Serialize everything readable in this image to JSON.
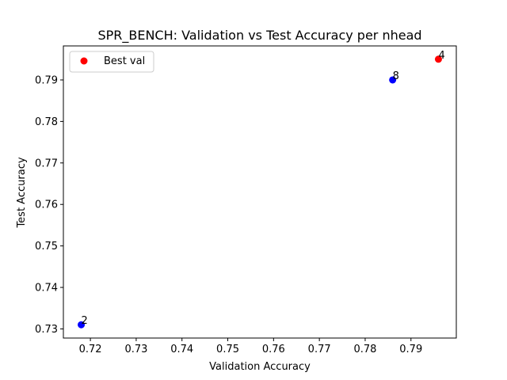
{
  "chart_data": {
    "type": "scatter",
    "title": "SPR_BENCH: Validation vs Test Accuracy per nhead",
    "xlabel": "Validation Accuracy",
    "ylabel": "Test Accuracy",
    "xlim": [
      0.7141,
      0.7999
    ],
    "ylim": [
      0.7278,
      0.7982
    ],
    "x_ticks": [
      "0.72",
      "0.73",
      "0.74",
      "0.75",
      "0.76",
      "0.77",
      "0.78",
      "0.79"
    ],
    "y_ticks": [
      "0.73",
      "0.74",
      "0.75",
      "0.76",
      "0.77",
      "0.78",
      "0.79"
    ],
    "grid": false,
    "points": [
      {
        "label": "2",
        "x": 0.718,
        "y": 0.731,
        "color": "#0000ff"
      },
      {
        "label": "8",
        "x": 0.786,
        "y": 0.79,
        "color": "#0000ff"
      },
      {
        "label": "4",
        "x": 0.796,
        "y": 0.795,
        "color": "#ff0000"
      }
    ],
    "legend": {
      "placement": "top-left",
      "entries": [
        {
          "name": "Best val",
          "color": "#ff0000"
        }
      ]
    }
  }
}
